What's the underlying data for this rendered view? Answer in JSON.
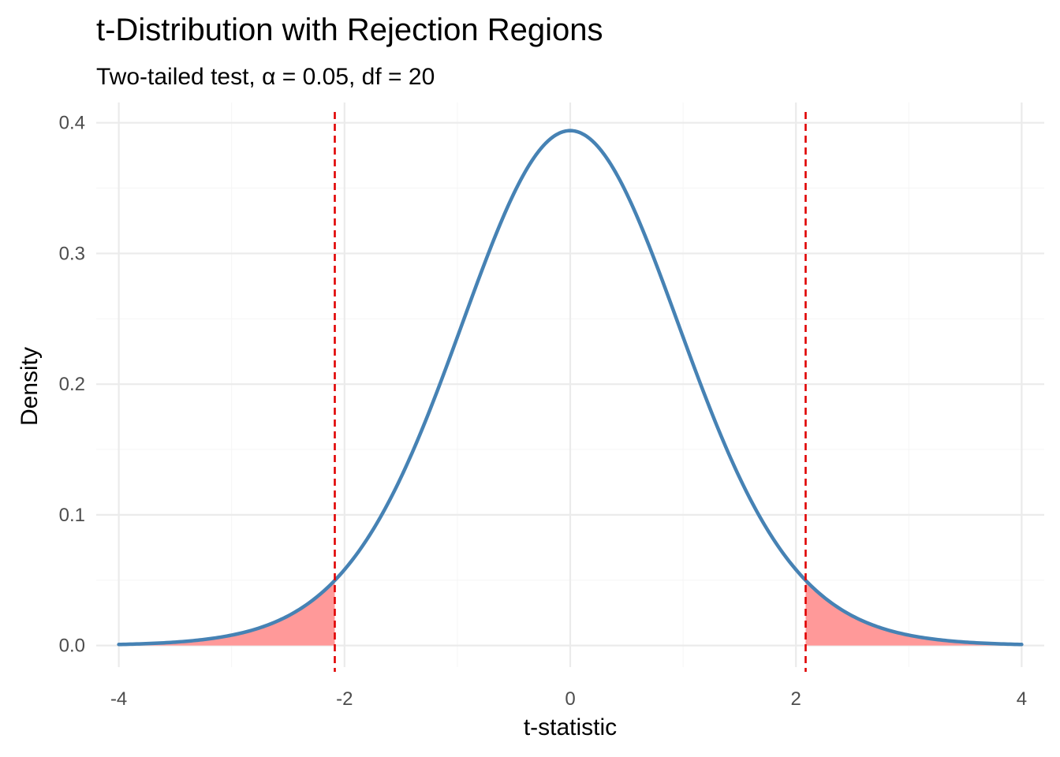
{
  "chart_data": {
    "type": "line",
    "title": "t-Distribution with Rejection Regions",
    "subtitle": "Two-tailed test, α = 0.05, df = 20",
    "xlabel": "t-statistic",
    "ylabel": "Density",
    "xlim": [
      -4.2,
      4.2
    ],
    "ylim": [
      -0.0165,
      0.4155
    ],
    "x_ticks": [
      -4,
      -2,
      0,
      2,
      4
    ],
    "x_tick_labels": [
      "-4",
      "-2",
      "0",
      "2",
      "4"
    ],
    "y_ticks": [
      0.0,
      0.1,
      0.2,
      0.3,
      0.4
    ],
    "y_tick_labels": [
      "0.0",
      "0.1",
      "0.2",
      "0.3",
      "0.4"
    ],
    "grid": true,
    "df": 20,
    "alpha": 0.05,
    "critical_values": [
      -2.086,
      2.086
    ],
    "x": [
      -4.0,
      -3.5,
      -3.0,
      -2.5,
      -2.086,
      -2.0,
      -1.5,
      -1.0,
      -0.5,
      0.0,
      0.5,
      1.0,
      1.5,
      2.0,
      2.086,
      2.5,
      3.0,
      3.5,
      4.0
    ],
    "series": [
      {
        "values": [
          0.0013,
          0.0036,
          0.0099,
          0.0252,
          0.045,
          0.0511,
          0.1278,
          0.236,
          0.345,
          0.394,
          0.345,
          0.236,
          0.1278,
          0.0511,
          0.045,
          0.0252,
          0.0099,
          0.0036,
          0.0013
        ]
      }
    ],
    "colors": {
      "curve": "#4682b4",
      "rejection_fill": "#ff9999",
      "critical_line": "#e00000",
      "grid_major": "#ebebeb",
      "grid_minor": "#f5f5f5"
    }
  }
}
